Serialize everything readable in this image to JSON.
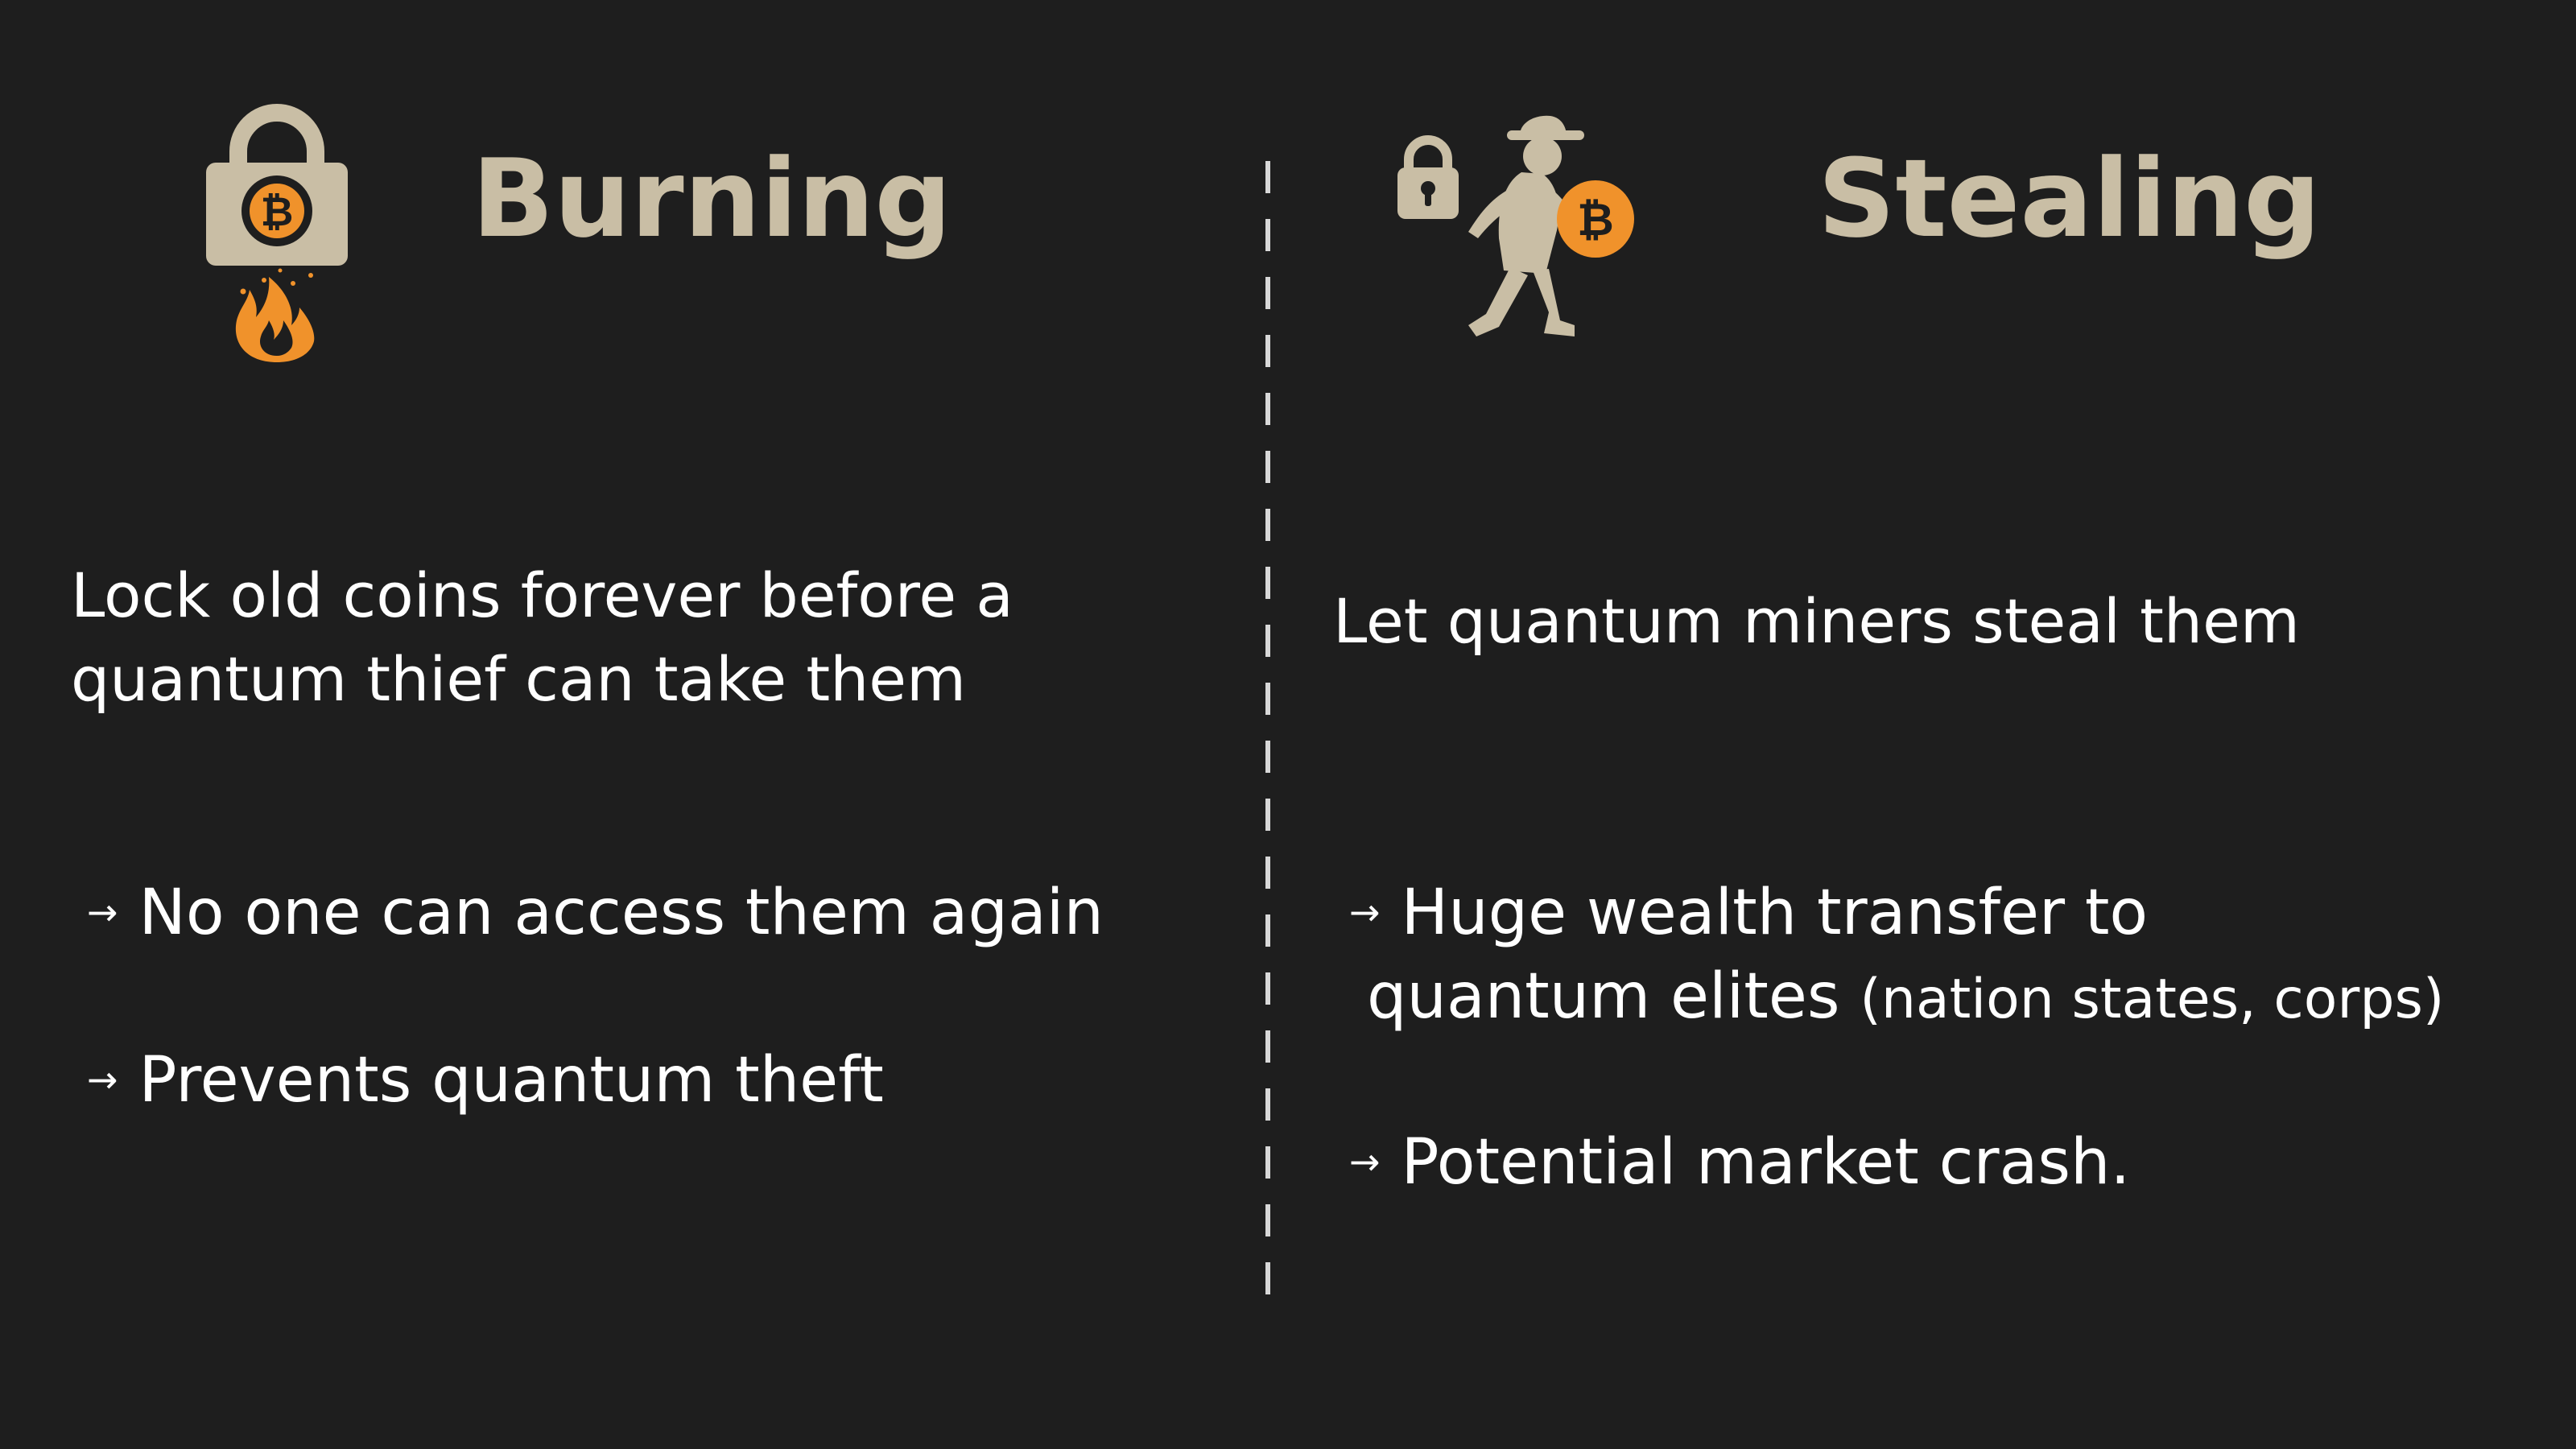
{
  "left": {
    "title": "Burning",
    "description_lines": [
      "Lock old coins forever before a",
      "quantum thief can take them"
    ],
    "bullets": [
      "No one can access them again",
      "Prevents quantum theft"
    ],
    "icon": "bitcoin-padlock-fire-icon"
  },
  "right": {
    "title": "Stealing",
    "description": "Let quantum miners steal them",
    "bullets": [
      {
        "line1": "Huge wealth transfer to",
        "line2_main": "quantum elites",
        "line2_note": "(nation states, corps)"
      },
      {
        "line1": "Potential market crash."
      }
    ],
    "icon": "thief-with-bitcoin-icon"
  },
  "bullet_marker": "→",
  "colors": {
    "background": "#1e1e1e",
    "title": "#c9bea5",
    "icon_fill": "#c9bea5",
    "bitcoin_orange": "#f0922b",
    "text": "#ffffff",
    "divider": "#d8d8d8"
  }
}
